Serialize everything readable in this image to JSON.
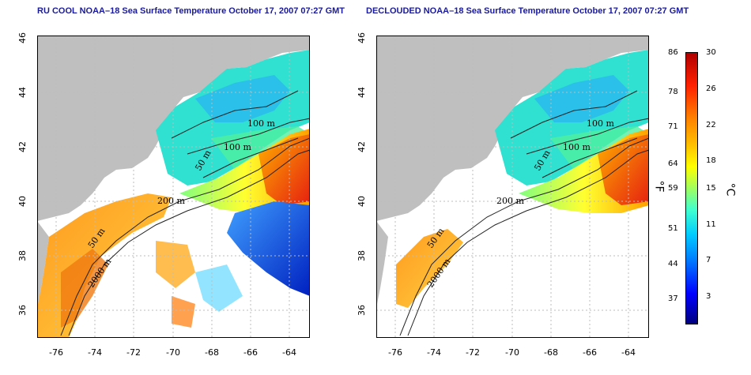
{
  "left_panel": {
    "title": "RU COOL NOAA–18 Sea Surface Temperature October 17, 2007 07:27 GMT"
  },
  "right_panel": {
    "title": "DECLOUDED NOAA–18 Sea Surface Temperature October 17, 2007 07:27 GMT"
  },
  "axes": {
    "x_ticks": [
      "-76",
      "-74",
      "-72",
      "-70",
      "-68",
      "-66",
      "-64"
    ],
    "y_ticks": [
      "36",
      "38",
      "40",
      "42",
      "44",
      "46"
    ]
  },
  "contour_labels": {
    "left": [
      "100 m",
      "100 m",
      "50 m",
      "200 m",
      "50 m",
      "2000 m"
    ],
    "right": [
      "100 m",
      "100 m",
      "50 m",
      "200 m",
      "50 m",
      "2000 m"
    ]
  },
  "colorbar": {
    "fahrenheit_labels": [
      "86",
      "78",
      "71",
      "64",
      "59",
      "51",
      "44",
      "37"
    ],
    "celsius_labels": [
      "30",
      "26",
      "22",
      "18",
      "15",
      "11",
      "7",
      "3"
    ],
    "fahrenheit_unit": "°F",
    "celsius_unit": "°C"
  },
  "colors": {
    "land": "#bfbfbf",
    "title": "#1a1a9c",
    "warm": "#e23a1a",
    "cold": "#1f4fe0"
  }
}
